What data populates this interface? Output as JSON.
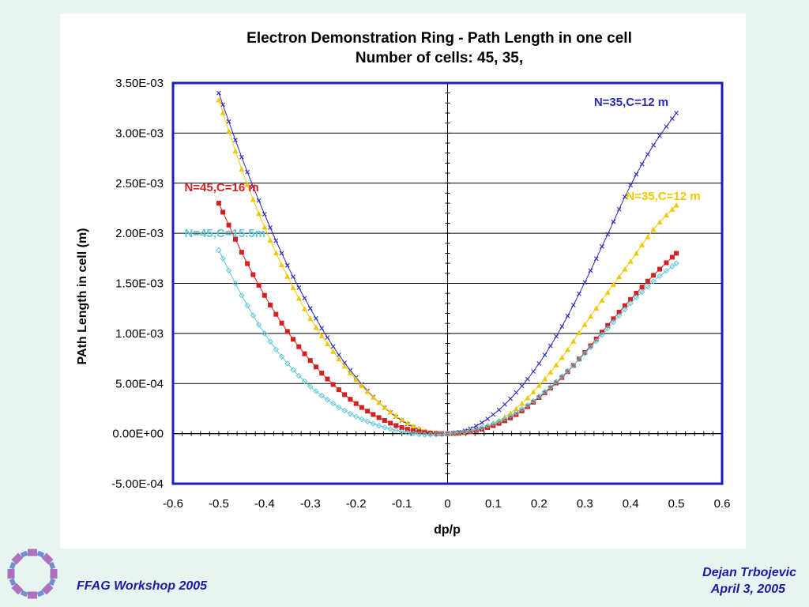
{
  "footer": {
    "left": "FFAG Workshop 2005",
    "author": "Dejan Trbojevic",
    "date": "April 3, 2005"
  },
  "colors": {
    "page_bg": "#e6f5ef",
    "frame": "#1c1cbf",
    "footer_text": "#1a1aa6"
  },
  "logo": {
    "icon": "ffag-ring-logo-icon"
  },
  "chart_data": {
    "type": "scatter",
    "title": "Electron Demonstration Ring - Path Length in one cell",
    "subtitle": "Number of cells: 45, 35,",
    "xlabel": "dp/p",
    "ylabel": "PAth Length in cell (m)",
    "xlim": [
      -0.6,
      0.6
    ],
    "ylim": [
      -0.0005,
      0.0035
    ],
    "x_ticks": [
      "-0.6",
      "-0.5",
      "-0.4",
      "-0.3",
      "-0.2",
      "-0.1",
      "0",
      "0.1",
      "0.2",
      "0.3",
      "0.4",
      "0.5",
      "0.6"
    ],
    "y_ticks": [
      "-5.00E-04",
      "0.00E+00",
      "5.00E-04",
      "1.00E-03",
      "1.50E-03",
      "2.00E-03",
      "2.50E-03",
      "3.00E-03",
      "3.50E-03"
    ],
    "grid": "horizontal",
    "legend": "inline labels",
    "series": [
      {
        "name": "N=35,C=12 m",
        "color": "#2a2ab8",
        "marker": "x",
        "x": [
          -0.5,
          -0.45,
          -0.4,
          -0.35,
          -0.3,
          -0.25,
          -0.2,
          -0.15,
          -0.1,
          -0.05,
          0,
          0.05,
          0.1,
          0.15,
          0.2,
          0.25,
          0.3,
          0.35,
          0.4,
          0.45,
          0.5
        ],
        "y": [
          0.0034,
          0.00276,
          0.00219,
          0.00168,
          0.00125,
          0.00087,
          0.00056,
          0.00031,
          0.00013,
          2e-05,
          0.0,
          5e-05,
          0.00019,
          0.00041,
          0.0007,
          0.00107,
          0.00151,
          0.00199,
          0.00248,
          0.00288,
          0.0032
        ],
        "label": "N=35,C=12 m"
      },
      {
        "name": "N=35,C=12 m",
        "color": "#f0c800",
        "marker": "triangle",
        "x": [
          -0.5,
          -0.45,
          -0.4,
          -0.35,
          -0.3,
          -0.25,
          -0.2,
          -0.15,
          -0.1,
          -0.05,
          0,
          0.05,
          0.1,
          0.15,
          0.2,
          0.25,
          0.3,
          0.35,
          0.4,
          0.45,
          0.5
        ],
        "y": [
          0.00333,
          0.00264,
          0.00206,
          0.00157,
          0.00115,
          0.00082,
          0.00054,
          0.00031,
          0.00014,
          3e-05,
          0.0,
          2e-05,
          0.0001,
          0.00025,
          0.00048,
          0.00076,
          0.00109,
          0.00141,
          0.00172,
          0.00204,
          0.00228
        ],
        "label": "N=35,C=12 m"
      },
      {
        "name": "N=45,C=16 m",
        "color": "#d42020",
        "marker": "square",
        "x": [
          -0.5,
          -0.45,
          -0.4,
          -0.35,
          -0.3,
          -0.25,
          -0.2,
          -0.15,
          -0.1,
          -0.05,
          0,
          0.05,
          0.1,
          0.15,
          0.2,
          0.25,
          0.3,
          0.35,
          0.4,
          0.45,
          0.5
        ],
        "y": [
          0.0023,
          0.00181,
          0.00138,
          0.00102,
          0.00073,
          0.00049,
          0.0003,
          0.00016,
          6e-05,
          1e-05,
          0.0,
          2e-05,
          8e-05,
          0.00019,
          0.00036,
          0.00056,
          0.00081,
          0.00108,
          0.00134,
          0.00158,
          0.0018
        ],
        "label": "N=45,C=16 m"
      },
      {
        "name": "N=45,C=15.5m",
        "color": "#5cc8d8",
        "marker": "diamond",
        "x": [
          -0.5,
          -0.45,
          -0.4,
          -0.35,
          -0.3,
          -0.25,
          -0.2,
          -0.15,
          -0.1,
          -0.05,
          0,
          0.05,
          0.1,
          0.15,
          0.2,
          0.25,
          0.3,
          0.35,
          0.4,
          0.45,
          0.5
        ],
        "y": [
          0.00183,
          0.00138,
          0.001,
          0.0007,
          0.00047,
          0.0003,
          0.00017,
          8e-05,
          2e-05,
          -1e-05,
          0.0,
          3e-05,
          0.0001,
          0.00021,
          0.00037,
          0.00057,
          0.0008,
          0.00105,
          0.0013,
          0.00152,
          0.0017
        ],
        "label": "N=45,C=15.5m"
      }
    ]
  }
}
